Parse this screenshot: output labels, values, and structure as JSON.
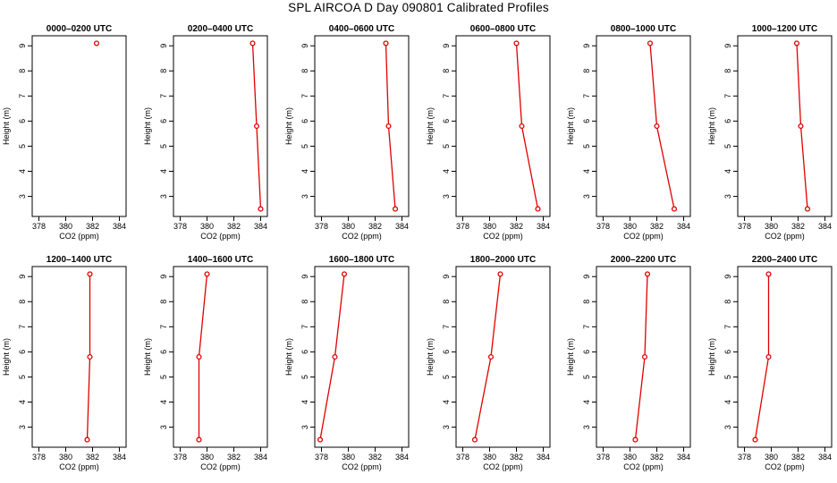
{
  "title": "SPL AIRCOA D  Day 090801  Calibrated Profiles",
  "colors": {
    "series": "#e00000",
    "axis": "#000000"
  },
  "chart_data": [
    {
      "type": "line",
      "title": "0000–0200 UTC",
      "xlabel": "CO2 (ppm)",
      "ylabel": "Height (m)",
      "xlim": [
        377.5,
        384.5
      ],
      "ylim": [
        2.2,
        9.4
      ],
      "xticks": [
        378,
        380,
        382,
        384
      ],
      "yticks": [
        3,
        4,
        5,
        6,
        7,
        8,
        9
      ],
      "x": [
        382.3
      ],
      "y": [
        9.1
      ]
    },
    {
      "type": "line",
      "title": "0200–0400 UTC",
      "xlabel": "CO2 (ppm)",
      "ylabel": "Height (m)",
      "xlim": [
        377.5,
        384.5
      ],
      "ylim": [
        2.2,
        9.4
      ],
      "xticks": [
        378,
        380,
        382,
        384
      ],
      "yticks": [
        3,
        4,
        5,
        6,
        7,
        8,
        9
      ],
      "x": [
        383.4,
        383.7,
        384.0
      ],
      "y": [
        9.1,
        5.8,
        2.5
      ]
    },
    {
      "type": "line",
      "title": "0400–0600 UTC",
      "xlabel": "CO2 (ppm)",
      "ylabel": "Height (m)",
      "xlim": [
        377.5,
        384.5
      ],
      "ylim": [
        2.2,
        9.4
      ],
      "xticks": [
        378,
        380,
        382,
        384
      ],
      "yticks": [
        3,
        4,
        5,
        6,
        7,
        8,
        9
      ],
      "x": [
        382.8,
        383.0,
        383.5
      ],
      "y": [
        9.1,
        5.8,
        2.5
      ]
    },
    {
      "type": "line",
      "title": "0600–0800 UTC",
      "xlabel": "CO2 (ppm)",
      "ylabel": "Height (m)",
      "xlim": [
        377.5,
        384.5
      ],
      "ylim": [
        2.2,
        9.4
      ],
      "xticks": [
        378,
        380,
        382,
        384
      ],
      "yticks": [
        3,
        4,
        5,
        6,
        7,
        8,
        9
      ],
      "x": [
        382.0,
        382.4,
        383.6
      ],
      "y": [
        9.1,
        5.8,
        2.5
      ]
    },
    {
      "type": "line",
      "title": "0800–1000 UTC",
      "xlabel": "CO2 (ppm)",
      "ylabel": "Height (m)",
      "xlim": [
        377.5,
        384.5
      ],
      "ylim": [
        2.2,
        9.4
      ],
      "xticks": [
        378,
        380,
        382,
        384
      ],
      "yticks": [
        3,
        4,
        5,
        6,
        7,
        8,
        9
      ],
      "x": [
        381.5,
        382.0,
        383.3
      ],
      "y": [
        9.1,
        5.8,
        2.5
      ]
    },
    {
      "type": "line",
      "title": "1000–1200 UTC",
      "xlabel": "CO2 (ppm)",
      "ylabel": "Height (m)",
      "xlim": [
        377.5,
        384.5
      ],
      "ylim": [
        2.2,
        9.4
      ],
      "xticks": [
        378,
        380,
        382,
        384
      ],
      "yticks": [
        3,
        4,
        5,
        6,
        7,
        8,
        9
      ],
      "x": [
        381.9,
        382.2,
        382.7
      ],
      "y": [
        9.1,
        5.8,
        2.5
      ]
    },
    {
      "type": "line",
      "title": "1200–1400 UTC",
      "xlabel": "CO2 (ppm)",
      "ylabel": "Height (m)",
      "xlim": [
        377.5,
        384.5
      ],
      "ylim": [
        2.2,
        9.4
      ],
      "xticks": [
        378,
        380,
        382,
        384
      ],
      "yticks": [
        3,
        4,
        5,
        6,
        7,
        8,
        9
      ],
      "x": [
        381.8,
        381.8,
        381.6
      ],
      "y": [
        9.1,
        5.8,
        2.5
      ]
    },
    {
      "type": "line",
      "title": "1400–1600 UTC",
      "xlabel": "CO2 (ppm)",
      "ylabel": "Height (m)",
      "xlim": [
        377.5,
        384.5
      ],
      "ylim": [
        2.2,
        9.4
      ],
      "xticks": [
        378,
        380,
        382,
        384
      ],
      "yticks": [
        3,
        4,
        5,
        6,
        7,
        8,
        9
      ],
      "x": [
        380.0,
        379.4,
        379.4
      ],
      "y": [
        9.1,
        5.8,
        2.5
      ]
    },
    {
      "type": "line",
      "title": "1600–1800 UTC",
      "xlabel": "CO2 (ppm)",
      "ylabel": "Height (m)",
      "xlim": [
        377.5,
        384.5
      ],
      "ylim": [
        2.2,
        9.4
      ],
      "xticks": [
        378,
        380,
        382,
        384
      ],
      "yticks": [
        3,
        4,
        5,
        6,
        7,
        8,
        9
      ],
      "x": [
        379.7,
        379.0,
        377.9
      ],
      "y": [
        9.1,
        5.8,
        2.5
      ]
    },
    {
      "type": "line",
      "title": "1800–2000 UTC",
      "xlabel": "CO2 (ppm)",
      "ylabel": "Height (m)",
      "xlim": [
        377.5,
        384.5
      ],
      "ylim": [
        2.2,
        9.4
      ],
      "xticks": [
        378,
        380,
        382,
        384
      ],
      "yticks": [
        3,
        4,
        5,
        6,
        7,
        8,
        9
      ],
      "x": [
        380.8,
        380.1,
        378.9
      ],
      "y": [
        9.1,
        5.8,
        2.5
      ]
    },
    {
      "type": "line",
      "title": "2000–2200 UTC",
      "xlabel": "CO2 (ppm)",
      "ylabel": "Height (m)",
      "xlim": [
        377.5,
        384.5
      ],
      "ylim": [
        2.2,
        9.4
      ],
      "xticks": [
        378,
        380,
        382,
        384
      ],
      "yticks": [
        3,
        4,
        5,
        6,
        7,
        8,
        9
      ],
      "x": [
        381.3,
        381.1,
        380.4
      ],
      "y": [
        9.1,
        5.8,
        2.5
      ]
    },
    {
      "type": "line",
      "title": "2200–2400 UTC",
      "xlabel": "CO2 (ppm)",
      "ylabel": "Height (m)",
      "xlim": [
        377.5,
        384.5
      ],
      "ylim": [
        2.2,
        9.4
      ],
      "xticks": [
        378,
        380,
        382,
        384
      ],
      "yticks": [
        3,
        4,
        5,
        6,
        7,
        8,
        9
      ],
      "x": [
        379.8,
        379.8,
        378.8
      ],
      "y": [
        9.1,
        5.8,
        2.5
      ]
    }
  ]
}
